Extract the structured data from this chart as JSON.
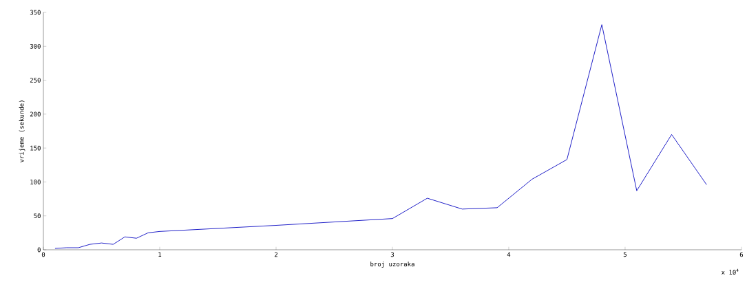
{
  "chart_data": {
    "type": "line",
    "xlabel": "broj uzoraka",
    "ylabel": "vrijeme (sekunde)",
    "x": [
      0.1,
      0.2,
      0.3,
      0.4,
      0.5,
      0.6,
      0.7,
      0.8,
      0.9,
      1.0,
      2.0,
      3.0,
      3.3,
      3.6,
      3.9,
      4.2,
      4.5,
      4.8,
      5.1,
      5.4,
      5.7
    ],
    "series": [
      {
        "color": "#2020c8",
        "values": [
          2,
          3,
          3,
          8,
          10,
          8,
          19,
          17,
          25,
          27,
          36,
          46,
          76,
          60,
          62,
          104,
          133,
          332,
          87,
          170,
          96
        ]
      }
    ],
    "xlim": [
      0,
      6
    ],
    "ylim": [
      0,
      350
    ],
    "xticks": [
      0,
      1,
      2,
      3,
      4,
      5,
      6
    ],
    "yticks": [
      0,
      50,
      100,
      150,
      200,
      250,
      300,
      350
    ],
    "annotations": [
      "x 10$^{4}$"
    ],
    "marker": "none",
    "line_style": "solid"
  }
}
